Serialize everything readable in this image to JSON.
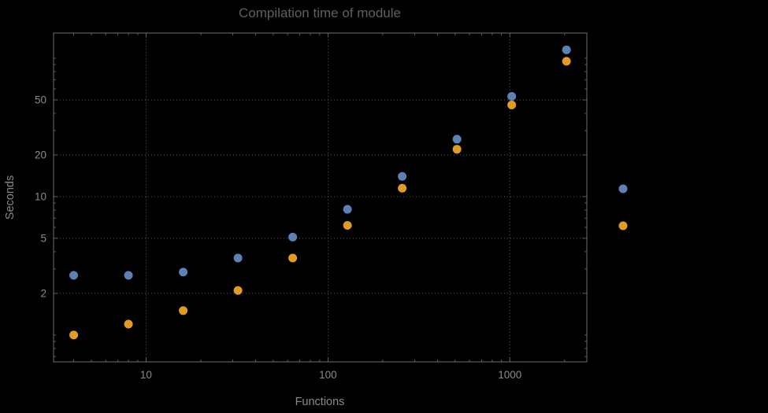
{
  "page": {
    "background": "#000000"
  },
  "chart_data": {
    "type": "scatter",
    "title": "Compilation time of module",
    "xlabel": "Functions",
    "ylabel": "Seconds",
    "x_axis": {
      "scale": "log",
      "ticks": [
        10,
        100,
        1000
      ],
      "range": [
        3.1,
        2650
      ]
    },
    "y_axis": {
      "scale": "log",
      "ticks": [
        2,
        5,
        10,
        20,
        50
      ],
      "range": [
        0.64,
        152
      ]
    },
    "grid": "dotted",
    "x": [
      4,
      8,
      16,
      32,
      64,
      128,
      256,
      512,
      1024,
      2048
    ],
    "series": [
      {
        "name": "series-blue",
        "color": "#5e81b5",
        "values": [
          2.7,
          2.7,
          2.85,
          3.6,
          5.1,
          8.1,
          14,
          26,
          53,
          115
        ]
      },
      {
        "name": "series-orange",
        "color": "#e19c24",
        "values": [
          1.0,
          1.2,
          1.5,
          2.1,
          3.6,
          6.2,
          11.5,
          22,
          46,
          95
        ]
      }
    ],
    "legend": {
      "position": "right",
      "markers": [
        {
          "name": "legend-marker-blue",
          "color": "#5e81b5"
        },
        {
          "name": "legend-marker-orange",
          "color": "#e19c24"
        }
      ]
    },
    "style": {
      "text_color": "#8a8a8a",
      "title_color": "#5f5f5f",
      "grid_color": "#5a5a5a",
      "frame_color": "#6e6e6e",
      "point_radius": 5.5
    }
  }
}
